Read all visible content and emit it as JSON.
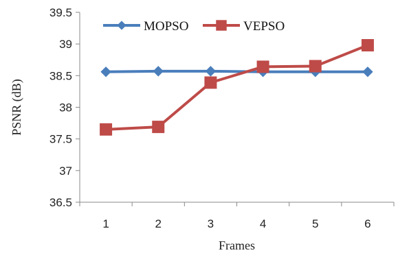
{
  "chart_data": {
    "type": "line",
    "title": "",
    "xlabel": "Frames",
    "ylabel": "PSNR (dB)",
    "categories": [
      "1",
      "2",
      "3",
      "4",
      "5",
      "6"
    ],
    "ylim": [
      36.5,
      39.5
    ],
    "yticks": [
      "36.5",
      "37",
      "37.5",
      "38",
      "38.5",
      "39",
      "39.5"
    ],
    "grid": false,
    "legend_position": "top",
    "series": [
      {
        "name": "MOPSO",
        "values": [
          38.56,
          38.57,
          38.57,
          38.56,
          38.56,
          38.56
        ],
        "color": "#4a7ebb",
        "marker": "diamond"
      },
      {
        "name": "VEPSO",
        "values": [
          37.65,
          37.69,
          38.39,
          38.64,
          38.65,
          38.98
        ],
        "color": "#be4b48",
        "marker": "square"
      }
    ]
  }
}
